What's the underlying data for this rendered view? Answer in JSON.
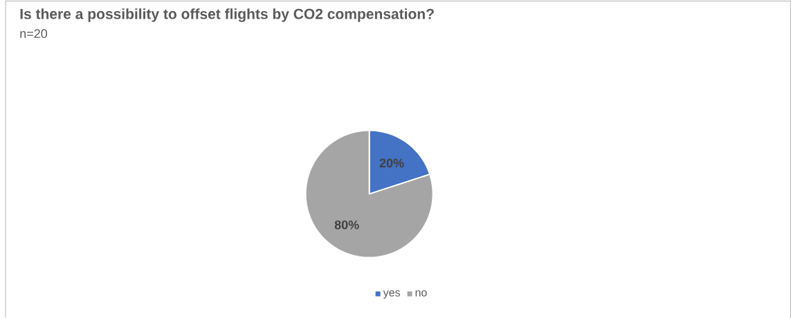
{
  "chart_data": {
    "type": "pie",
    "title": "Is there a possibility to offset flights by CO2 compensation?",
    "subtitle": "n=20",
    "categories": [
      "yes",
      "no"
    ],
    "values": [
      20,
      80
    ],
    "colors": [
      "#4472c4",
      "#a5a5a5"
    ],
    "value_labels": [
      "20%",
      "80%"
    ],
    "legend": "bottom"
  }
}
